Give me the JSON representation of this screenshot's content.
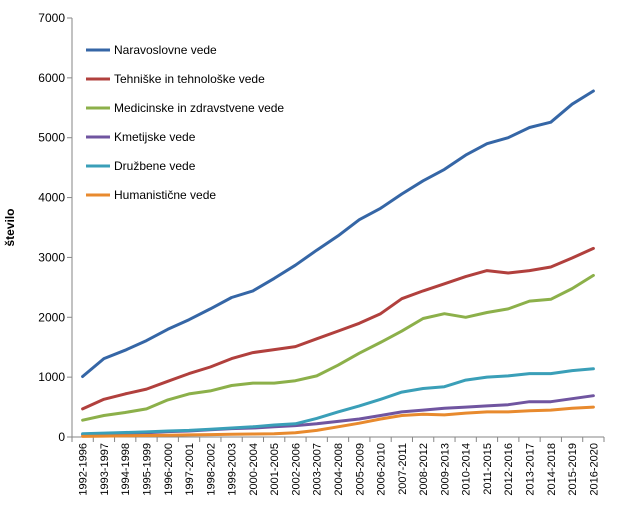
{
  "chart_data": {
    "type": "line",
    "title": "",
    "xlabel": "",
    "ylabel": "število",
    "ylim": [
      0,
      7000
    ],
    "yticks": [
      0,
      1000,
      2000,
      3000,
      4000,
      5000,
      6000,
      7000
    ],
    "grid": false,
    "legend_position": "top-left",
    "categories": [
      "1992-1996",
      "1993-1997",
      "1994-1998",
      "1995-1999",
      "1996-2000",
      "1997-2001",
      "1998-2002",
      "1999-2003",
      "2000-2004",
      "2001-2005",
      "2002-2006",
      "2003-2007",
      "2004-2008",
      "2005-2009",
      "2006-2010",
      "2007-2011",
      "2008-2012",
      "2009-2013",
      "2010-2014",
      "2011-2015",
      "2012-2016",
      "2013-2017",
      "2014-2018",
      "2015-2019",
      "2016-2020"
    ],
    "series": [
      {
        "name": "Naravoslovne vede",
        "color": "#3566A6",
        "values": [
          1010,
          1310,
          1450,
          1610,
          1800,
          1960,
          2140,
          2330,
          2440,
          2650,
          2870,
          3120,
          3360,
          3630,
          3820,
          4060,
          4280,
          4470,
          4710,
          4900,
          5000,
          5170,
          5260,
          5560,
          5780
        ]
      },
      {
        "name": "Tehniške in tehnološke vede",
        "color": "#B1403D",
        "values": [
          470,
          630,
          720,
          800,
          930,
          1060,
          1170,
          1310,
          1410,
          1460,
          1510,
          1640,
          1770,
          1900,
          2060,
          2310,
          2440,
          2560,
          2680,
          2780,
          2740,
          2780,
          2840,
          2990,
          3150
        ]
      },
      {
        "name": "Medicinske in zdravstvene vede",
        "color": "#8CB04A",
        "values": [
          280,
          360,
          410,
          470,
          620,
          720,
          770,
          860,
          900,
          900,
          940,
          1020,
          1200,
          1400,
          1580,
          1770,
          1980,
          2060,
          2000,
          2080,
          2140,
          2270,
          2300,
          2480,
          2700
        ]
      },
      {
        "name": "Kmetijske vede",
        "color": "#7055A0",
        "values": [
          40,
          50,
          60,
          70,
          90,
          100,
          120,
          140,
          150,
          170,
          190,
          220,
          260,
          300,
          360,
          420,
          450,
          480,
          500,
          520,
          540,
          590,
          590,
          640,
          690
        ]
      },
      {
        "name": "Družbene vede",
        "color": "#3A9FB8",
        "values": [
          55,
          65,
          75,
          85,
          100,
          110,
          130,
          150,
          170,
          200,
          220,
          310,
          420,
          520,
          630,
          750,
          810,
          840,
          950,
          1000,
          1020,
          1060,
          1060,
          1110,
          1140
        ]
      },
      {
        "name": "Humanistične vede",
        "color": "#E88A2E",
        "values": [
          10,
          15,
          20,
          25,
          30,
          35,
          40,
          45,
          50,
          55,
          70,
          110,
          170,
          230,
          300,
          360,
          380,
          370,
          400,
          420,
          420,
          440,
          450,
          480,
          500
        ]
      }
    ]
  }
}
